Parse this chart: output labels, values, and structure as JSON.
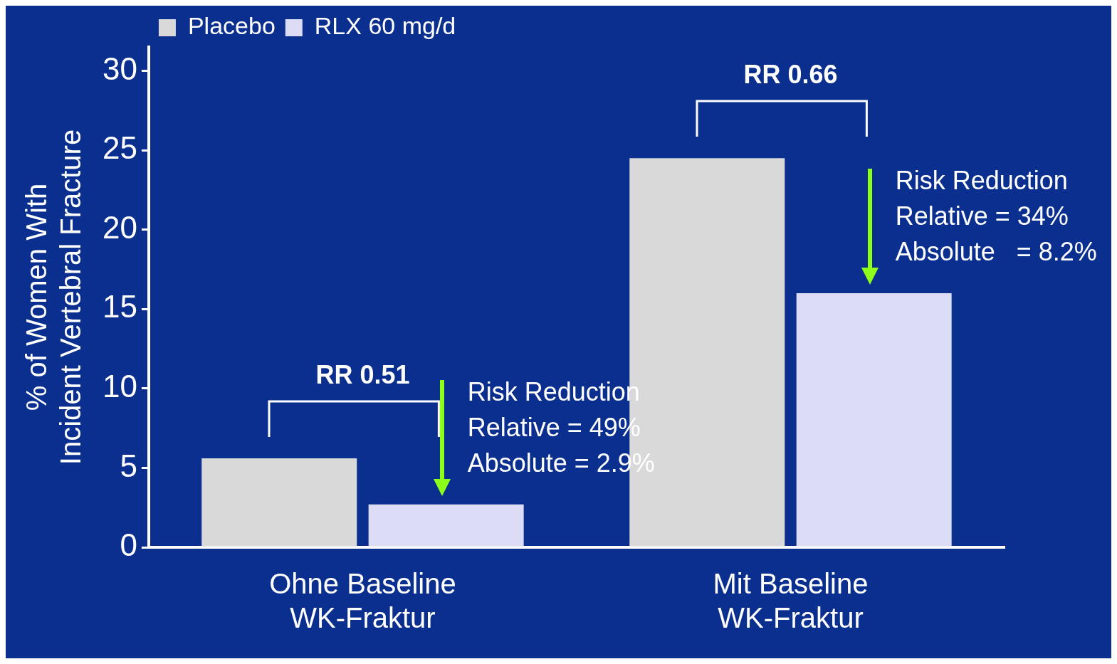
{
  "chart_data": {
    "type": "bar",
    "ylabel": "% of Women With\nIncident Vertebral Fracture",
    "categories": [
      "Ohne Baseline\nWK-Fraktur",
      "Mit Baseline\nWK-Fraktur"
    ],
    "series": [
      {
        "name": "Placebo",
        "color": "#d9d9d9",
        "values": [
          5.6,
          24.5
        ]
      },
      {
        "name": "RLX 60 mg/d",
        "color": "#dcdcf6",
        "values": [
          2.7,
          16.0
        ]
      }
    ],
    "ylim": [
      0,
      31.5
    ],
    "yticks": [
      0,
      5,
      10,
      15,
      20,
      25,
      30
    ],
    "grid": false,
    "legend": "top left",
    "annotations": [
      "RR 0.51",
      "Risk Reduction\nRelative = 49%\nAbsolute = 2.9%",
      "RR 0.66",
      "Risk Reduction\nRelative = 34%\nAbsolute   = 8.2%"
    ]
  }
}
